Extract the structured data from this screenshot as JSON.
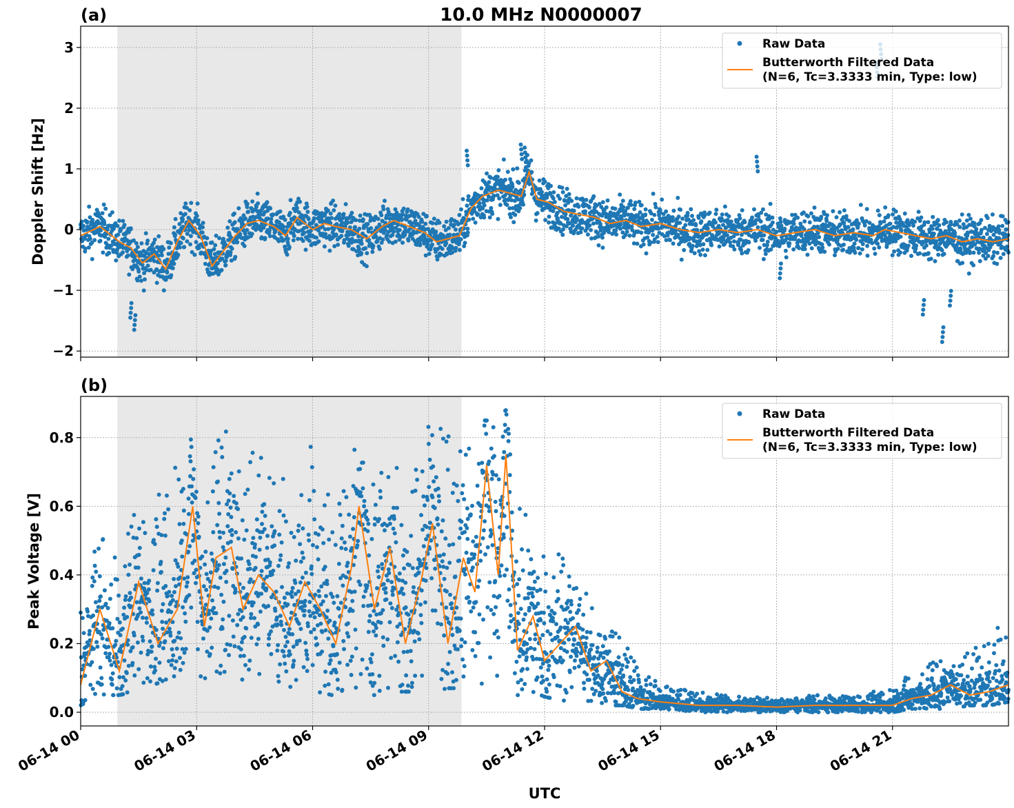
{
  "figure": {
    "title": "10.0 MHz N0000007",
    "xlabel": "UTC",
    "x_tick_labels": [
      "06-14 00",
      "06-14 03",
      "06-14 06",
      "06-14 09",
      "06-14 12",
      "06-14 15",
      "06-14 18",
      "06-14 21"
    ],
    "x_tick_hours": [
      0,
      3,
      6,
      9,
      12,
      15,
      18,
      21
    ],
    "xlim_hours": [
      0,
      24
    ],
    "shaded_interval_hours": [
      0.95,
      9.85
    ]
  },
  "colors": {
    "raw": "#1f77b4",
    "filtered": "#ff7f0e",
    "shade": "#e8e8e8",
    "grid": "#b0b0b0"
  },
  "legend": {
    "raw_label": "Raw Data",
    "filtered_label_line1": "Butterworth Filtered Data",
    "filtered_label_line2": "(N=6, Tc=3.3333 min, Type: low)",
    "placement": "top-right"
  },
  "chart_data": [
    {
      "type": "scatter",
      "panel_label": "(a)",
      "ylabel": "Doppler Shift [Hz]",
      "ylim": [
        -2.1,
        3.35
      ],
      "y_ticks": [
        -2,
        -1,
        0,
        1,
        2,
        3
      ],
      "y_tick_labels": [
        "−2",
        "−1",
        "0",
        "1",
        "2",
        "3"
      ],
      "grid": true,
      "series": [
        {
          "name": "Butterworth Filtered Data",
          "x": [
            0,
            0.5,
            1,
            1.3,
            1.6,
            1.9,
            2.2,
            2.5,
            2.8,
            3.1,
            3.4,
            3.7,
            4.0,
            4.3,
            4.6,
            5.0,
            5.3,
            5.6,
            6.0,
            6.3,
            6.6,
            7.0,
            7.4,
            7.8,
            8.1,
            8.5,
            8.9,
            9.2,
            9.5,
            9.8,
            10.1,
            10.4,
            10.8,
            11.1,
            11.4,
            11.6,
            11.8,
            12.1,
            12.5,
            12.9,
            13.3,
            13.7,
            14.1,
            14.5,
            15.0,
            15.5,
            16.0,
            16.5,
            17.0,
            17.5,
            18.0,
            18.5,
            19.0,
            19.5,
            20.0,
            20.5,
            20.8,
            21.2,
            21.6,
            22.0,
            22.4,
            22.8,
            23.2,
            23.6,
            24.0
          ],
          "y": [
            -0.1,
            0.05,
            -0.2,
            -0.3,
            -0.55,
            -0.4,
            -0.65,
            -0.2,
            0.15,
            -0.1,
            -0.6,
            -0.35,
            -0.1,
            0.1,
            0.15,
            0.05,
            -0.1,
            0.2,
            0.0,
            0.1,
            0.05,
            0.0,
            -0.15,
            0.05,
            0.15,
            0.05,
            -0.05,
            -0.2,
            -0.15,
            -0.1,
            0.35,
            0.55,
            0.65,
            0.6,
            0.55,
            0.95,
            0.5,
            0.45,
            0.3,
            0.25,
            0.2,
            0.1,
            0.15,
            0.05,
            0.1,
            0.0,
            -0.05,
            0.0,
            -0.05,
            0.0,
            -0.1,
            -0.05,
            0.0,
            -0.1,
            -0.05,
            -0.1,
            0.0,
            -0.05,
            -0.1,
            -0.15,
            -0.1,
            -0.2,
            -0.15,
            -0.2,
            -0.15
          ]
        },
        {
          "name": "Raw Data",
          "outliers_x": [
            1.3,
            1.4,
            10.0,
            11.4,
            11.5,
            17.5,
            18.1,
            20.6,
            20.7,
            21.8,
            22.3,
            22.5
          ],
          "outliers_y": [
            -1.45,
            -1.65,
            1.3,
            1.4,
            1.35,
            1.2,
            -0.8,
            2.75,
            3.05,
            -1.4,
            -1.85,
            -1.25
          ]
        }
      ]
    },
    {
      "type": "scatter",
      "panel_label": "(b)",
      "ylabel": "Peak Voltage [V]",
      "ylim": [
        -0.04,
        0.92
      ],
      "y_ticks": [
        0,
        0.2,
        0.4,
        0.6,
        0.8
      ],
      "y_tick_labels": [
        "0.0",
        "0.2",
        "0.4",
        "0.6",
        "0.8"
      ],
      "grid": true,
      "series": [
        {
          "name": "Butterworth Filtered Data",
          "x": [
            0,
            0.5,
            1.0,
            1.5,
            2.0,
            2.5,
            2.9,
            3.2,
            3.5,
            3.9,
            4.2,
            4.6,
            5.0,
            5.4,
            5.8,
            6.2,
            6.6,
            7.0,
            7.2,
            7.6,
            8.0,
            8.4,
            8.8,
            9.1,
            9.5,
            9.9,
            10.2,
            10.5,
            10.8,
            11.0,
            11.3,
            11.7,
            12.0,
            12.4,
            12.8,
            13.2,
            13.6,
            14.0,
            14.4,
            15.0,
            16.0,
            17.0,
            18.0,
            19.0,
            20.0,
            21.0,
            21.5,
            22.0,
            22.5,
            23.0,
            23.5,
            24.0
          ],
          "y": [
            0.08,
            0.3,
            0.12,
            0.38,
            0.2,
            0.3,
            0.6,
            0.25,
            0.45,
            0.48,
            0.3,
            0.4,
            0.35,
            0.25,
            0.38,
            0.3,
            0.2,
            0.42,
            0.6,
            0.3,
            0.48,
            0.2,
            0.38,
            0.55,
            0.2,
            0.45,
            0.35,
            0.72,
            0.4,
            0.75,
            0.18,
            0.28,
            0.15,
            0.2,
            0.25,
            0.12,
            0.15,
            0.06,
            0.04,
            0.03,
            0.02,
            0.02,
            0.015,
            0.02,
            0.02,
            0.02,
            0.04,
            0.05,
            0.08,
            0.05,
            0.06,
            0.08
          ]
        },
        {
          "name": "Raw Data",
          "max_x": [
            0,
            0.5,
            1.0,
            1.4,
            1.9,
            2.3,
            2.8,
            3.2,
            3.6,
            3.9,
            4.4,
            4.8,
            5.3,
            5.7,
            6.1,
            6.5,
            7.0,
            7.2,
            7.6,
            7.9,
            8.3,
            8.8,
            9.1,
            9.5,
            9.9,
            10.3,
            10.7,
            11.0,
            11.3,
            11.8,
            12.2,
            12.7,
            13.2,
            13.7,
            14.0,
            14.5,
            15.0,
            16.0,
            17.0,
            18.0,
            19.0,
            20.0,
            21.0,
            21.5,
            22.0,
            22.5,
            23.0,
            23.5,
            24.0
          ],
          "max_y": [
            0.35,
            0.52,
            0.45,
            0.63,
            0.6,
            0.72,
            0.83,
            0.72,
            0.83,
            0.82,
            0.78,
            0.75,
            0.7,
            0.68,
            0.84,
            0.65,
            0.82,
            0.7,
            0.84,
            0.72,
            0.75,
            0.8,
            0.85,
            0.82,
            0.85,
            0.85,
            0.85,
            0.88,
            0.6,
            0.58,
            0.5,
            0.42,
            0.35,
            0.3,
            0.25,
            0.12,
            0.08,
            0.06,
            0.05,
            0.04,
            0.05,
            0.05,
            0.07,
            0.12,
            0.15,
            0.15,
            0.18,
            0.22,
            0.3
          ],
          "min_y": [
            0.02,
            0.05,
            0.05,
            0.06,
            0.08,
            0.1,
            0.12,
            0.1,
            0.08,
            0.1,
            0.08,
            0.08,
            0.08,
            0.06,
            0.06,
            0.05,
            0.04,
            0.04,
            0.05,
            0.06,
            0.06,
            0.06,
            0.06,
            0.07,
            0.07,
            0.06,
            0.06,
            0.06,
            0.05,
            0.05,
            0.04,
            0.03,
            0.03,
            0.02,
            0.02,
            0.01,
            0.01,
            0.0,
            0.0,
            0.0,
            0.0,
            0.0,
            0.0,
            0.01,
            0.01,
            0.01,
            0.02,
            0.02,
            0.03
          ]
        }
      ]
    }
  ]
}
